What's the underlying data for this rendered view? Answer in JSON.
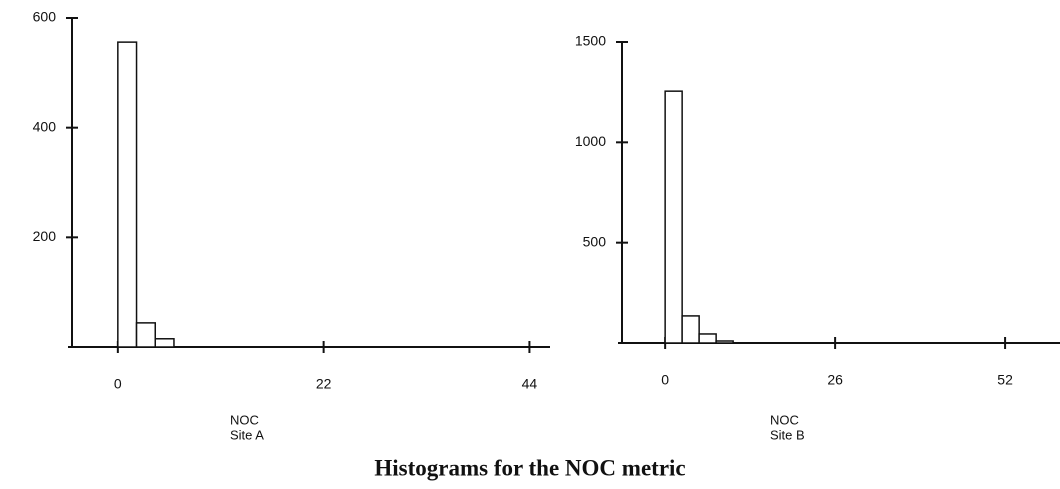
{
  "title": "Histograms for the NOC metric",
  "chart_data": [
    {
      "type": "histogram",
      "xlabel": "NOC",
      "site": "Site A",
      "bins": [
        0,
        2,
        4,
        6
      ],
      "values": [
        556,
        44,
        15
      ],
      "color": "#ffffff",
      "xlim": [
        -4.9,
        46.2
      ],
      "ylim": [
        0,
        600
      ],
      "xticks": [
        0,
        22,
        44
      ],
      "yticks": [
        200,
        400,
        600
      ]
    },
    {
      "type": "histogram",
      "xlabel": "NOC",
      "site": "Site B",
      "bins": [
        0,
        2.6,
        5.2,
        7.8,
        10.4
      ],
      "values": [
        1255,
        135,
        45,
        10
      ],
      "color": "#ffffff",
      "xlim": [
        -6.6,
        60.4
      ],
      "ylim": [
        0,
        1500
      ],
      "xticks": [
        0,
        26,
        52
      ],
      "yticks": [
        500,
        1000,
        1500
      ]
    }
  ]
}
